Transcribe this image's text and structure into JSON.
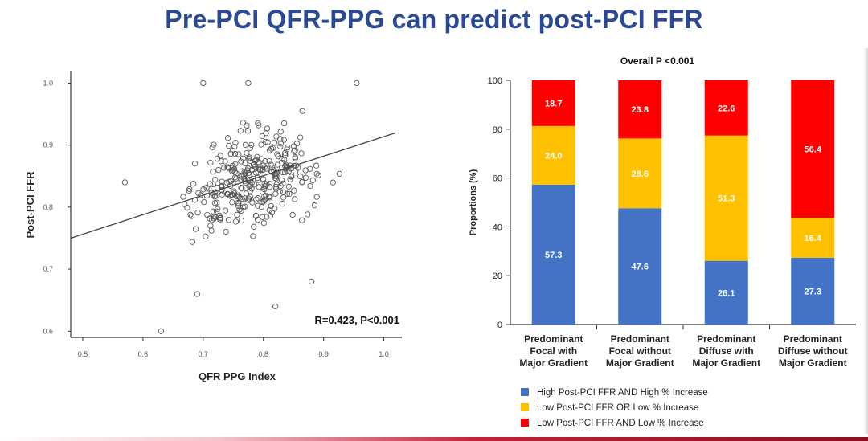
{
  "slide": {
    "title": "Pre-PCI QFR-PPG can predict post-PCI FFR"
  },
  "chart_data": [
    {
      "type": "scatter",
      "xlabel": "QFR PPG Index",
      "ylabel": "Post-PCI FFR",
      "xlim": [
        0.48,
        1.03
      ],
      "ylim": [
        0.59,
        1.02
      ],
      "xticks": [
        "0.5",
        "0.6",
        "0.7",
        "0.8",
        "0.9",
        "1.0"
      ],
      "yticks": [
        "0.6",
        "0.7",
        "0.8",
        "0.9",
        "1.0"
      ],
      "annotation": "R=0.423, P<0.001",
      "regression": {
        "x": [
          0.48,
          1.02
        ],
        "y": [
          0.75,
          0.92
        ]
      },
      "marker_color": "#555555",
      "line_color": "#444444",
      "grid": false
    },
    {
      "type": "bar",
      "stacked": true,
      "title": "Overall P <0.001",
      "ylabel": "Proportions (%)",
      "ylim": [
        0,
        100
      ],
      "yticks": [
        "0",
        "20",
        "40",
        "60",
        "80",
        "100"
      ],
      "categories": [
        [
          "Predominant",
          "Focal with",
          "Major Gradient"
        ],
        [
          "Predominant",
          "Focal without",
          "Major Gradient"
        ],
        [
          "Predominant",
          "Diffuse with",
          "Major Gradient"
        ],
        [
          "Predominant",
          "Diffuse without",
          "Major Gradient"
        ]
      ],
      "series": [
        {
          "name": "High Post-PCI FFR AND High % Increase",
          "color": "#4472c4",
          "values": [
            57.3,
            47.6,
            26.1,
            27.3
          ],
          "labels": [
            "57.3",
            "47.6",
            "26.1",
            "27.3"
          ]
        },
        {
          "name": "Low Post-PCI FFR OR Low % Increase",
          "color": "#ffc000",
          "values": [
            24.0,
            28.6,
            51.3,
            16.4
          ],
          "labels": [
            "24.0",
            "28.6",
            "51.3",
            "16.4"
          ]
        },
        {
          "name": "Low Post-PCI FFR AND Low % Increase",
          "color": "#ff0000",
          "values": [
            18.7,
            23.8,
            22.6,
            56.4
          ],
          "labels": [
            "18.7",
            "23.8",
            "22.6",
            "56.4"
          ]
        }
      ],
      "legend_position": "bottom"
    }
  ]
}
